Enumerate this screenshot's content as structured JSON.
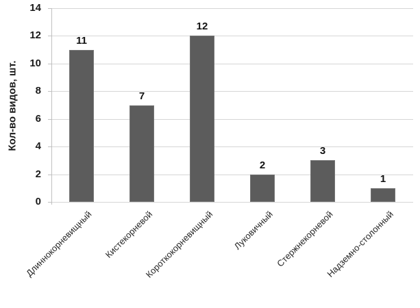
{
  "chart_data": {
    "type": "bar",
    "categories": [
      "Длиннокорневищный",
      "Кистекорневой",
      "Короткокорневищный",
      "Луковичный",
      "Стержнекорневой",
      "Надземно-столонный"
    ],
    "values": [
      11,
      7,
      12,
      2,
      3,
      1
    ],
    "title": "",
    "xlabel": "",
    "ylabel": "Кол-во видов, шт.",
    "ylim": [
      0,
      14
    ],
    "ytick_step": 2,
    "yticks": [
      0,
      2,
      4,
      6,
      8,
      10,
      12,
      14
    ],
    "grid": "horizontal",
    "legend": "none",
    "data_labels_shown": true,
    "data_labels": [
      "11",
      "7",
      "12",
      "2",
      "3",
      "1"
    ]
  },
  "colors": {
    "bar": "#5c5c5c",
    "bar_border": "#757575",
    "gridline": "#d6d6d6",
    "axis": "#c0c0c0",
    "text": "#1a1a1a",
    "background": "#ffffff"
  }
}
